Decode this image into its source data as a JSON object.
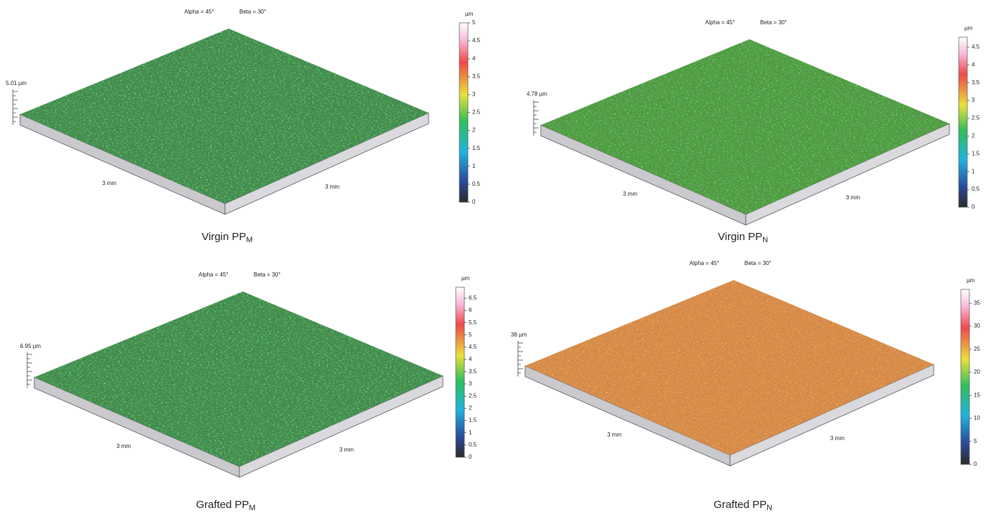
{
  "panels": [
    {
      "angles": {
        "alpha": "Alpha = 45°",
        "beta": "Beta = 30°"
      },
      "height_label": "5.01 µm",
      "x_label": "3 mm",
      "y_label": "3 mm",
      "colorbar": {
        "unit": "µm",
        "range": [
          0,
          5
        ],
        "ticks": [
          0,
          0.5,
          1,
          1.5,
          2,
          2.5,
          3,
          3.5,
          4,
          4.5,
          5
        ]
      },
      "caption": {
        "main": "Virgin PP",
        "sub": "M"
      }
    },
    {
      "angles": {
        "alpha": "Alpha = 45°",
        "beta": "Beta = 30°"
      },
      "height_label": "4.78 µm",
      "x_label": "3 mm",
      "y_label": "3 mm",
      "colorbar": {
        "unit": "µm",
        "range": [
          0,
          4.78
        ],
        "ticks": [
          0,
          0.5,
          1,
          1.5,
          2,
          2.5,
          3,
          3.5,
          4,
          4.5
        ]
      },
      "caption": {
        "main": "Virgin PP",
        "sub": "N"
      }
    },
    {
      "angles": {
        "alpha": "Alpha = 45°",
        "beta": "Beta = 30°"
      },
      "height_label": "6.95 µm",
      "x_label": "3 mm",
      "y_label": "3 mm",
      "colorbar": {
        "unit": "µm",
        "range": [
          0,
          6.95
        ],
        "ticks": [
          0,
          0.5,
          1,
          1.5,
          2,
          2.5,
          3,
          3.5,
          4,
          4.5,
          5,
          5.5,
          6,
          6.5
        ]
      },
      "caption": {
        "main": "Grafted PP",
        "sub": "M"
      }
    },
    {
      "angles": {
        "alpha": "Alpha = 45°",
        "beta": "Beta = 30°"
      },
      "height_label": "38 µm",
      "x_label": "3 mm",
      "y_label": "3 mm",
      "colorbar": {
        "unit": "µm",
        "range": [
          0,
          38
        ],
        "ticks": [
          0,
          5,
          10,
          15,
          20,
          25,
          30,
          35
        ]
      },
      "caption": {
        "main": "Grafted PP",
        "sub": "N"
      }
    }
  ]
}
